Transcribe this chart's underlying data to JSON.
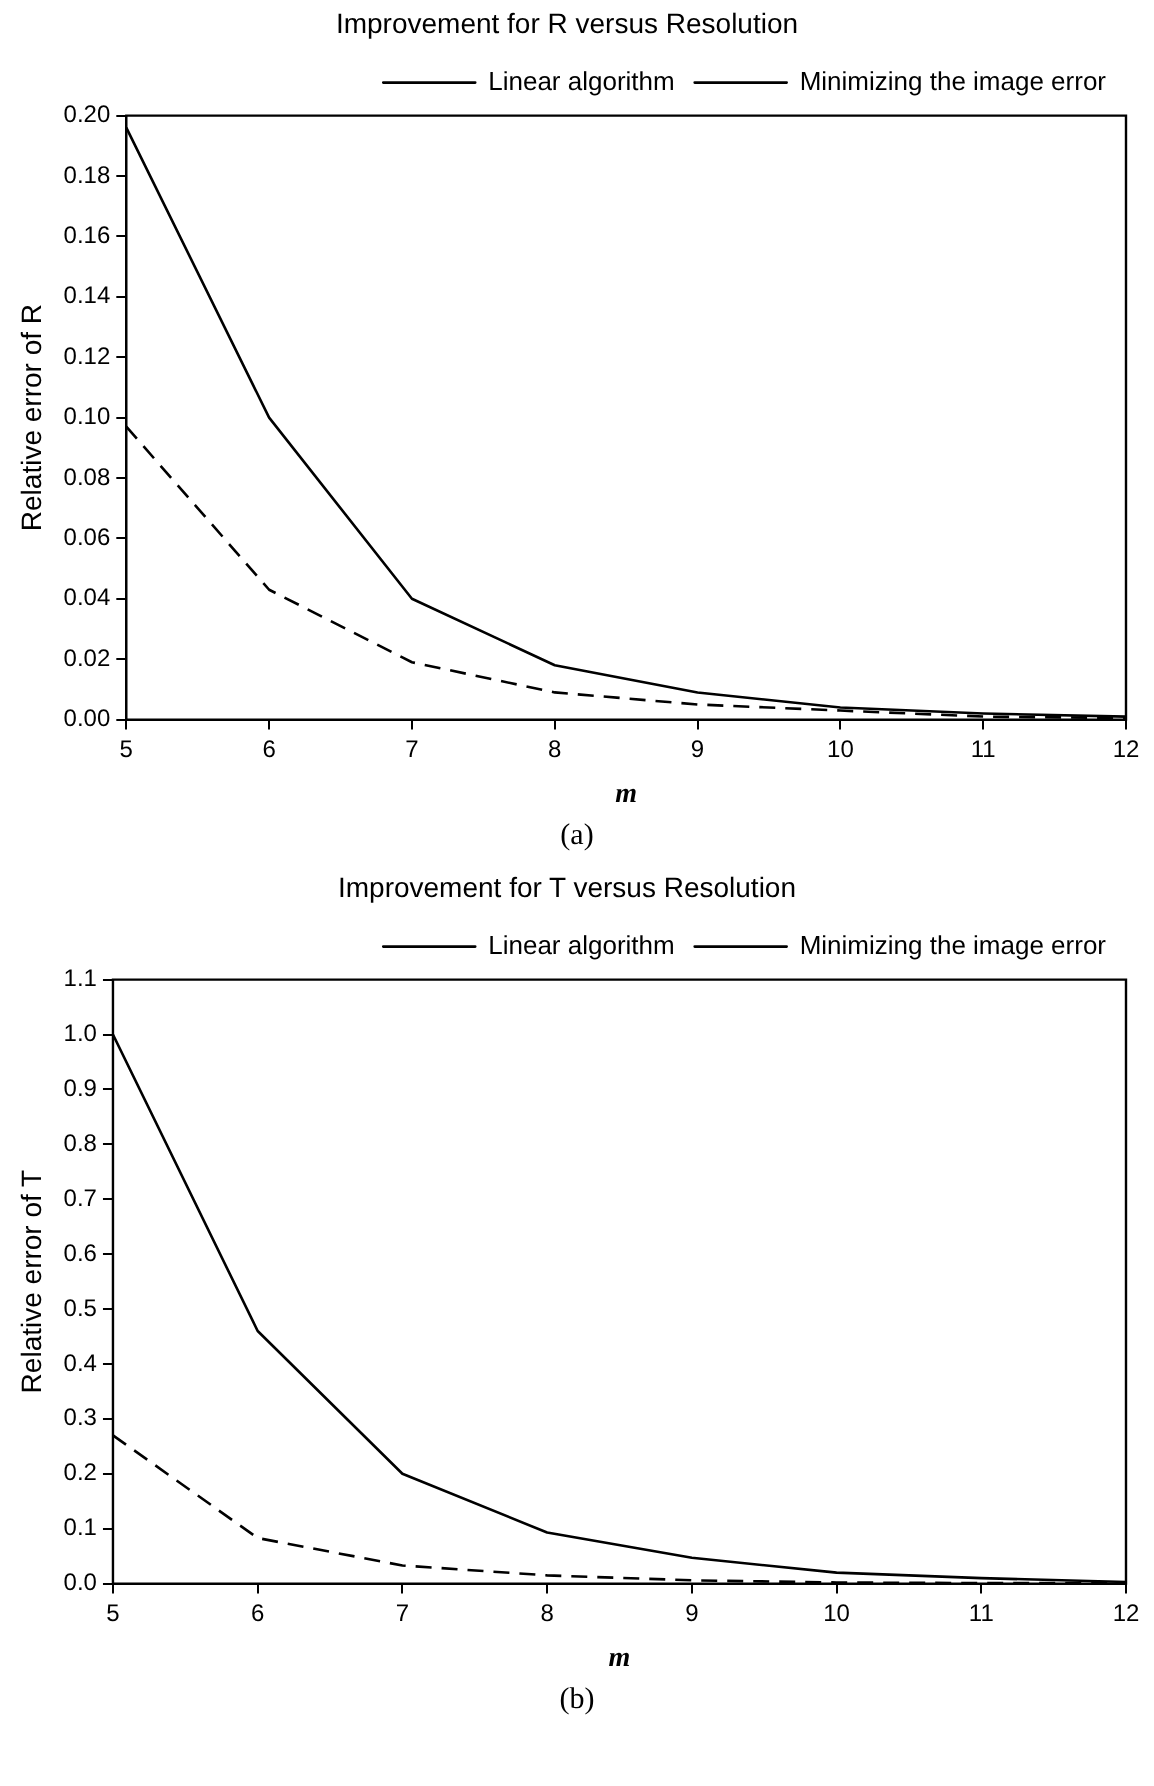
{
  "chart_data": [
    {
      "type": "line",
      "title": "Improvement for R versus Resolution",
      "xlabel": "m",
      "ylabel": "Relative error of R",
      "annotations": [
        "(a)"
      ],
      "x": [
        5,
        6,
        7,
        8,
        9,
        10,
        11,
        12
      ],
      "xlim": [
        5,
        12
      ],
      "xticks": [
        5,
        6,
        7,
        8,
        9,
        10,
        11,
        12
      ],
      "ylim": [
        0,
        0.2
      ],
      "yticks": [
        {
          "value": 0,
          "label": "0.00"
        },
        {
          "value": 0.02,
          "label": "0.02"
        },
        {
          "value": 0.04,
          "label": "0.04"
        },
        {
          "value": 0.06,
          "label": "0.06"
        },
        {
          "value": 0.08,
          "label": "0.08"
        },
        {
          "value": 0.1,
          "label": "0.10"
        },
        {
          "value": 0.12,
          "label": "0.12"
        },
        {
          "value": 0.14,
          "label": "0.14"
        },
        {
          "value": 0.16,
          "label": "0.16"
        },
        {
          "value": 0.18,
          "label": "0.18"
        },
        {
          "value": 0.2,
          "label": "0.20"
        }
      ],
      "grid": false,
      "legend": "top right",
      "marker": "none",
      "series": [
        {
          "name": "Linear algorithm",
          "color": "#000000",
          "line_style": "solid",
          "values": [
            0.196,
            0.1,
            0.04,
            0.018,
            0.009,
            0.004,
            0.002,
            0.001
          ]
        },
        {
          "name": "Minimizing the image error",
          "color": "#000000",
          "line_style": "dashed",
          "values": [
            0.097,
            0.043,
            0.019,
            0.009,
            0.005,
            0.003,
            0.001,
            0.0005
          ]
        }
      ]
    },
    {
      "type": "line",
      "title": "Improvement for T versus Resolution",
      "xlabel": "m",
      "ylabel": "Relative error of T",
      "annotations": [
        "(b)"
      ],
      "x": [
        5,
        6,
        7,
        8,
        9,
        10,
        11,
        12
      ],
      "xlim": [
        5,
        12
      ],
      "xticks": [
        5,
        6,
        7,
        8,
        9,
        10,
        11,
        12
      ],
      "ylim": [
        0,
        1.1
      ],
      "yticks": [
        {
          "value": 0,
          "label": "0.0"
        },
        0.1,
        0.2,
        0.3,
        0.4,
        0.5,
        0.6,
        0.7,
        0.8,
        0.9,
        {
          "value": 1,
          "label": "1.0"
        },
        1.1
      ],
      "grid": false,
      "legend": "top right",
      "marker": "none",
      "series": [
        {
          "name": "Linear algorithm",
          "color": "#000000",
          "line_style": "solid",
          "values": [
            1.0,
            0.46,
            0.2,
            0.093,
            0.047,
            0.02,
            0.01,
            0.003
          ]
        },
        {
          "name": "Minimizing the image error",
          "color": "#000000",
          "line_style": "dashed",
          "values": [
            0.27,
            0.083,
            0.033,
            0.015,
            0.006,
            0.002,
            0.001,
            0.001
          ]
        }
      ]
    }
  ]
}
